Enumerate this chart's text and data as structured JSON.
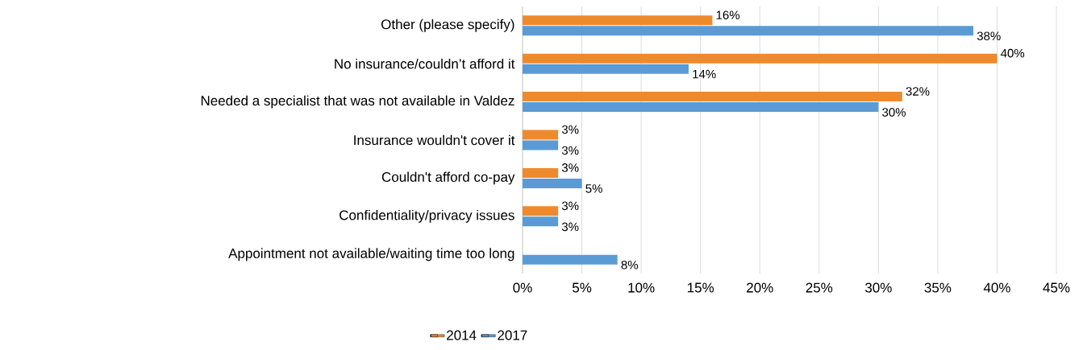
{
  "chart_data": {
    "type": "bar",
    "orientation": "horizontal",
    "categories": [
      "Other (please specify)",
      "No insurance/couldn’t afford it",
      "Needed a specialist that was not available in Valdez",
      "Insurance wouldn't cover it",
      "Couldn't afford co-pay",
      "Confidentiality/privacy issues",
      "Appointment not available/waiting time too long"
    ],
    "series": [
      {
        "name": "2014",
        "color": "#ef8a2c",
        "values": [
          16,
          40,
          32,
          3,
          3,
          3,
          null
        ],
        "value_labels": [
          "16%",
          "40%",
          "32%",
          "3%",
          "3%",
          "3%",
          null
        ]
      },
      {
        "name": "2017",
        "color": "#5b9bd5",
        "values": [
          38,
          14,
          30,
          3,
          5,
          3,
          8
        ],
        "value_labels": [
          "38%",
          "14%",
          "30%",
          "3%",
          "5%",
          "3%",
          "8%"
        ]
      }
    ],
    "xlim": [
      0,
      45
    ],
    "xticks": [
      {
        "value": 0,
        "label": "0%"
      },
      {
        "value": 5,
        "label": "5%"
      },
      {
        "value": 10,
        "label": "10%"
      },
      {
        "value": 15,
        "label": "15%"
      },
      {
        "value": 20,
        "label": "20%"
      },
      {
        "value": 25,
        "label": "25%"
      },
      {
        "value": 30,
        "label": "30%"
      },
      {
        "value": 35,
        "label": "35%"
      },
      {
        "value": 40,
        "label": "40%"
      },
      {
        "value": 45,
        "label": "45%"
      }
    ],
    "grid": "x",
    "legend": "bottom"
  }
}
